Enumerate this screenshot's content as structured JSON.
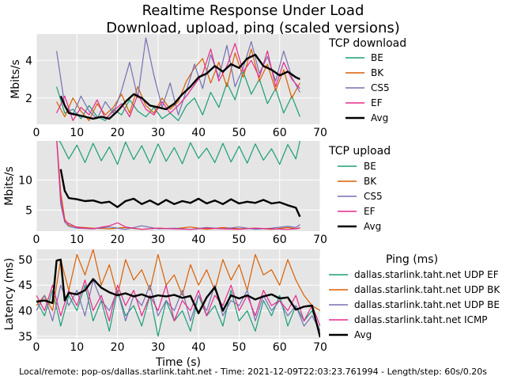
{
  "title": {
    "line1": "Realtime Response Under Load",
    "line2": "Download, upload, ping (scaled versions)"
  },
  "footer": "Local/remote: pop-os/dallas.starlink.taht.net - Time: 2021-12-09T22:03:23.761994 - Length/step: 60s/0.20s",
  "colors": {
    "BE": "#1b9e77",
    "BK": "#d95f02",
    "CS5": "#7570b3",
    "EF": "#e7298a",
    "Avg": "#000000",
    "background": "#e5e5e5",
    "grid": "#ffffff"
  },
  "chart_data": [
    {
      "type": "line",
      "id": "tcp-download",
      "ylabel": "Mbits/s",
      "xlabel": "",
      "xlim": [
        0,
        70
      ],
      "ylim": [
        0.6,
        5.4
      ],
      "xticks": [
        0,
        10,
        20,
        30,
        40,
        50,
        60,
        70
      ],
      "yticks": [
        2,
        4
      ],
      "legend_title": "TCP download",
      "legend_position": "right",
      "series": [
        {
          "name": "BE",
          "color": "#1b9e77",
          "x": [
            5,
            7,
            9,
            11,
            13,
            15,
            17,
            19,
            21,
            23,
            25,
            27,
            29,
            31,
            33,
            35,
            37,
            39,
            41,
            43,
            45,
            47,
            49,
            51,
            53,
            55,
            57,
            59,
            61,
            63,
            65
          ],
          "y": [
            2.6,
            1.2,
            1.4,
            0.9,
            1.6,
            1.0,
            0.8,
            1.4,
            1.1,
            1.9,
            1.3,
            1.0,
            1.5,
            0.9,
            1.2,
            0.8,
            1.6,
            2.0,
            1.1,
            2.3,
            1.5,
            2.8,
            1.9,
            3.4,
            2.2,
            3.0,
            1.7,
            2.5,
            1.2,
            2.1,
            1.0
          ]
        },
        {
          "name": "BK",
          "color": "#d95f02",
          "x": [
            5,
            7,
            9,
            11,
            13,
            15,
            17,
            19,
            21,
            23,
            25,
            27,
            29,
            31,
            33,
            35,
            37,
            39,
            41,
            43,
            45,
            47,
            49,
            51,
            53,
            55,
            57,
            59,
            61,
            63,
            65
          ],
          "y": [
            1.8,
            1.0,
            2.0,
            1.3,
            0.8,
            1.7,
            1.1,
            1.5,
            2.2,
            1.2,
            2.6,
            1.6,
            1.2,
            2.0,
            1.4,
            1.8,
            2.9,
            3.6,
            4.1,
            2.8,
            3.9,
            2.6,
            4.4,
            3.1,
            4.6,
            2.9,
            3.8,
            2.4,
            3.5,
            2.0,
            2.8
          ]
        },
        {
          "name": "CS5",
          "color": "#7570b3",
          "x": [
            5,
            7,
            9,
            11,
            13,
            15,
            17,
            19,
            21,
            23,
            25,
            27,
            29,
            31,
            33,
            35,
            37,
            39,
            41,
            43,
            45,
            47,
            49,
            51,
            53,
            55,
            57,
            59,
            61,
            63,
            65
          ],
          "y": [
            4.5,
            1.6,
            1.1,
            2.1,
            1.3,
            0.9,
            1.8,
            1.2,
            2.4,
            3.9,
            2.0,
            5.2,
            3.2,
            1.5,
            2.8,
            1.1,
            2.4,
            3.8,
            2.5,
            4.3,
            3.1,
            4.8,
            2.6,
            3.6,
            5.0,
            3.3,
            4.2,
            2.9,
            4.5,
            3.1,
            2.3
          ]
        },
        {
          "name": "EF",
          "color": "#e7298a",
          "x": [
            5,
            7,
            9,
            11,
            13,
            15,
            17,
            19,
            21,
            23,
            25,
            27,
            29,
            31,
            33,
            35,
            37,
            39,
            41,
            43,
            45,
            47,
            49,
            51,
            53,
            55,
            57,
            59,
            61,
            63,
            65
          ],
          "y": [
            1.2,
            2.1,
            0.8,
            1.5,
            1.1,
            1.9,
            0.9,
            1.3,
            1.7,
            1.0,
            2.2,
            1.4,
            1.1,
            1.8,
            1.2,
            1.6,
            2.1,
            2.7,
            3.3,
            4.6,
            2.9,
            3.7,
            4.9,
            3.4,
            4.0,
            3.1,
            4.5,
            2.6,
            3.9,
            3.0,
            2.5
          ]
        },
        {
          "name": "Avg",
          "color": "#000000",
          "x": [
            6,
            7,
            8,
            10,
            12,
            14,
            16,
            18,
            20,
            22,
            24,
            26,
            28,
            30,
            32,
            34,
            36,
            38,
            40,
            42,
            44,
            46,
            48,
            50,
            52,
            54,
            56,
            58,
            60,
            62,
            64,
            65
          ],
          "y": [
            2.1,
            1.6,
            1.2,
            1.1,
            1.0,
            0.9,
            1.0,
            0.9,
            1.3,
            1.8,
            2.2,
            2.0,
            1.6,
            1.5,
            1.4,
            1.7,
            2.2,
            2.6,
            3.1,
            3.3,
            3.7,
            3.4,
            3.8,
            3.6,
            4.1,
            4.3,
            3.7,
            3.5,
            3.2,
            3.4,
            3.1,
            3.0
          ]
        }
      ]
    },
    {
      "type": "line",
      "id": "tcp-upload",
      "ylabel": "Mbits/s",
      "xlabel": "",
      "xlim": [
        0,
        70
      ],
      "ylim": [
        1.5,
        16.5
      ],
      "xticks": [
        0,
        10,
        20,
        30,
        40,
        50,
        60,
        70
      ],
      "yticks": [
        5,
        10
      ],
      "legend_title": "TCP upload",
      "legend_position": "right",
      "series": [
        {
          "name": "BE",
          "color": "#1b9e77",
          "x": [
            5,
            6,
            8,
            10,
            12,
            14,
            16,
            18,
            20,
            22,
            24,
            26,
            28,
            30,
            32,
            34,
            36,
            38,
            40,
            42,
            44,
            46,
            48,
            50,
            52,
            54,
            56,
            58,
            60,
            62,
            64,
            65
          ],
          "y": [
            17,
            16.2,
            13.5,
            15.8,
            12.9,
            16.1,
            13.2,
            15.5,
            12.6,
            16.3,
            13.4,
            15.7,
            12.8,
            16.0,
            13.1,
            15.4,
            12.7,
            16.2,
            13.6,
            15.3,
            12.9,
            16.1,
            13.0,
            15.6,
            12.8,
            16.0,
            13.3,
            15.2,
            12.6,
            15.9,
            13.5,
            16.5
          ]
        },
        {
          "name": "BK",
          "color": "#d95f02",
          "x": [
            5,
            6,
            7,
            8,
            10,
            14,
            18,
            22,
            26,
            30,
            34,
            38,
            42,
            46,
            50,
            54,
            58,
            62,
            64,
            65
          ],
          "y": [
            17,
            8,
            3.5,
            2.5,
            2.2,
            2.0,
            1.9,
            2.1,
            1.8,
            2.0,
            1.9,
            2.2,
            1.8,
            2.1,
            1.9,
            2.0,
            1.8,
            2.1,
            1.9,
            2.0
          ]
        },
        {
          "name": "CS5",
          "color": "#7570b3",
          "x": [
            5,
            6,
            7,
            8,
            10,
            14,
            18,
            22,
            26,
            30,
            34,
            38,
            42,
            46,
            50,
            54,
            58,
            62,
            64,
            65
          ],
          "y": [
            17,
            6,
            3.0,
            2.3,
            2.0,
            1.9,
            2.2,
            1.8,
            2.4,
            1.9,
            2.0,
            1.8,
            2.1,
            1.9,
            2.2,
            1.8,
            2.0,
            2.3,
            2.1,
            2.6
          ]
        },
        {
          "name": "EF",
          "color": "#e7298a",
          "x": [
            5,
            6,
            7,
            8,
            10,
            14,
            18,
            20,
            22,
            26,
            30,
            34,
            38,
            42,
            46,
            50,
            54,
            58,
            62,
            64,
            65
          ],
          "y": [
            17,
            7,
            3.2,
            2.8,
            2.1,
            1.9,
            2.4,
            2.9,
            2.2,
            1.8,
            2.0,
            1.9,
            1.8,
            2.0,
            1.9,
            1.8,
            2.0,
            1.9,
            1.8,
            1.9,
            2.1
          ]
        },
        {
          "name": "Avg",
          "color": "#000000",
          "x": [
            6,
            7,
            8,
            10,
            12,
            14,
            16,
            18,
            20,
            22,
            24,
            26,
            28,
            30,
            32,
            34,
            36,
            38,
            40,
            42,
            44,
            46,
            48,
            50,
            52,
            54,
            56,
            58,
            60,
            62,
            64,
            65
          ],
          "y": [
            11.8,
            8.2,
            7.0,
            6.8,
            6.5,
            6.6,
            6.2,
            6.4,
            5.5,
            6.5,
            6.9,
            6.0,
            6.6,
            5.9,
            6.7,
            6.0,
            6.5,
            6.2,
            6.9,
            6.1,
            6.6,
            6.0,
            6.8,
            6.1,
            6.4,
            6.2,
            6.7,
            6.1,
            6.3,
            5.8,
            5.4,
            3.9
          ]
        }
      ]
    },
    {
      "type": "line",
      "id": "ping",
      "ylabel": "Latency (ms)",
      "xlabel": "Time (s)",
      "xlim": [
        0,
        70
      ],
      "ylim": [
        34.5,
        52
      ],
      "xticks": [
        0,
        10,
        20,
        30,
        40,
        50,
        60,
        70
      ],
      "yticks": [
        35,
        40,
        45,
        50
      ],
      "legend_title": "Ping (ms)",
      "legend_position": "right",
      "series": [
        {
          "name": "dallas.starlink.taht.net UDP EF",
          "color": "#1b9e77",
          "x": [
            0,
            2,
            4,
            6,
            8,
            10,
            12,
            14,
            16,
            18,
            20,
            22,
            24,
            26,
            28,
            30,
            32,
            34,
            36,
            38,
            40,
            42,
            44,
            46,
            48,
            50,
            52,
            54,
            56,
            58,
            60,
            62,
            64,
            66,
            68,
            70
          ],
          "y": [
            42,
            39,
            44,
            37,
            43,
            40,
            45,
            38,
            42,
            36,
            44,
            39,
            41,
            37,
            43,
            35,
            42,
            38,
            40,
            36,
            43,
            39,
            41,
            37,
            44,
            38,
            40,
            36,
            42,
            39,
            43,
            37,
            41,
            38,
            40,
            36
          ]
        },
        {
          "name": "dallas.starlink.taht.net UDP BK",
          "color": "#d95f02",
          "x": [
            0,
            2,
            4,
            6,
            8,
            10,
            12,
            14,
            16,
            18,
            20,
            22,
            24,
            26,
            28,
            30,
            32,
            34,
            36,
            38,
            40,
            42,
            44,
            46,
            48,
            50,
            52,
            54,
            56,
            58,
            60,
            62,
            64,
            66,
            68,
            70
          ],
          "y": [
            41,
            43,
            40,
            50,
            44,
            51,
            47,
            52,
            45,
            49,
            43,
            50,
            46,
            48,
            44,
            51,
            45,
            47,
            43,
            49,
            45,
            48,
            44,
            50,
            46,
            49,
            44,
            51,
            47,
            48,
            45,
            50,
            46,
            43,
            41,
            40
          ]
        },
        {
          "name": "dallas.starlink.taht.net UDP BE",
          "color": "#7570b3",
          "x": [
            0,
            2,
            4,
            6,
            8,
            10,
            12,
            14,
            16,
            18,
            20,
            22,
            24,
            26,
            28,
            30,
            32,
            34,
            36,
            38,
            40,
            42,
            44,
            46,
            48,
            50,
            52,
            54,
            56,
            58,
            60,
            62,
            64,
            66,
            68,
            70
          ],
          "y": [
            40,
            43,
            38,
            45,
            41,
            44,
            39,
            46,
            42,
            40,
            44,
            38,
            43,
            41,
            45,
            39,
            42,
            40,
            44,
            38,
            43,
            40,
            45,
            39,
            42,
            41,
            44,
            38,
            43,
            40,
            42,
            39,
            41,
            37,
            39,
            36
          ]
        },
        {
          "name": "dallas.starlink.taht.net ICMP",
          "color": "#e7298a",
          "x": [
            0,
            2,
            4,
            6,
            8,
            10,
            12,
            14,
            16,
            18,
            20,
            22,
            24,
            26,
            28,
            30,
            32,
            34,
            36,
            38,
            40,
            42,
            44,
            46,
            48,
            50,
            52,
            54,
            56,
            58,
            60,
            62,
            64,
            66,
            68,
            70
          ],
          "y": [
            43,
            40,
            45,
            39,
            44,
            41,
            46,
            40,
            43,
            38,
            45,
            41,
            44,
            39,
            43,
            40,
            45,
            38,
            42,
            40,
            44,
            39,
            43,
            41,
            45,
            40,
            43,
            39,
            44,
            41,
            42,
            40,
            43,
            38,
            41,
            37
          ]
        },
        {
          "name": "Avg",
          "color": "#000000",
          "x": [
            0,
            2,
            4,
            5,
            6,
            7,
            8,
            10,
            12,
            14,
            16,
            18,
            20,
            22,
            24,
            26,
            28,
            30,
            32,
            34,
            36,
            38,
            40,
            42,
            44,
            46,
            48,
            50,
            52,
            54,
            56,
            58,
            60,
            62,
            64,
            66,
            68,
            70
          ],
          "y": [
            41.8,
            42.0,
            41.5,
            49.8,
            50.0,
            42.0,
            43.5,
            43.2,
            44.0,
            46.2,
            44.5,
            43.6,
            43.0,
            43.4,
            42.8,
            43.2,
            42.6,
            43.0,
            42.8,
            43.1,
            42.5,
            42.9,
            39.5,
            42.6,
            44.6,
            40.0,
            43.0,
            42.4,
            43.0,
            42.2,
            42.8,
            43.2,
            42.4,
            42.6,
            40.2,
            40.8,
            41.0,
            34.8
          ]
        }
      ]
    }
  ]
}
